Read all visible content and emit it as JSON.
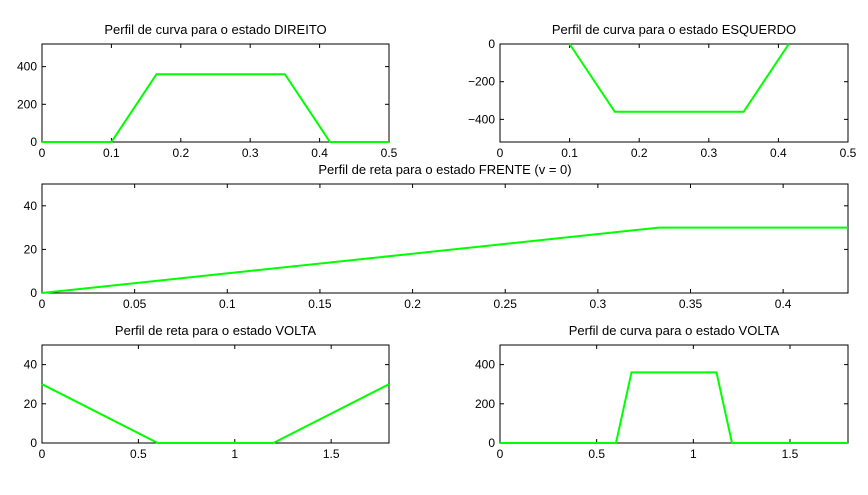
{
  "chart_data": [
    {
      "type": "line",
      "title": "Perfil de curva para o estado DIREITO",
      "xlabel": "",
      "ylabel": "",
      "xlim": [
        0,
        0.5
      ],
      "ylim": [
        0,
        520
      ],
      "xticks": [
        0,
        0.1,
        0.2,
        0.3,
        0.4,
        0.5
      ],
      "xtick_labels": [
        "0",
        "0.1",
        "0.2",
        "0.3",
        "0.4",
        "0.5"
      ],
      "yticks": [
        0,
        200,
        400
      ],
      "ytick_labels": [
        "0",
        "200",
        "400"
      ],
      "grid": false,
      "color": "#00ff00",
      "series": [
        {
          "x": [
            0,
            0.1,
            0.165,
            0.35,
            0.415,
            0.5
          ],
          "y": [
            0,
            0,
            360,
            360,
            0,
            0
          ]
        }
      ]
    },
    {
      "type": "line",
      "title": "Perfil de curva para o estado ESQUERDO",
      "xlabel": "",
      "ylabel": "",
      "xlim": [
        0,
        0.5
      ],
      "ylim": [
        -520,
        0
      ],
      "xticks": [
        0,
        0.1,
        0.2,
        0.3,
        0.4,
        0.5
      ],
      "xtick_labels": [
        "0",
        "0.1",
        "0.2",
        "0.3",
        "0.4",
        "0.5"
      ],
      "yticks": [
        -400,
        -200,
        0
      ],
      "ytick_labels": [
        "−400",
        "−200",
        "0"
      ],
      "grid": false,
      "color": "#00ff00",
      "series": [
        {
          "x": [
            0.1,
            0.165,
            0.35,
            0.415
          ],
          "y": [
            0,
            -360,
            -360,
            0
          ]
        }
      ]
    },
    {
      "type": "line",
      "title": "Perfil de reta para o estado FRENTE (v = 0)",
      "xlabel": "",
      "ylabel": "",
      "xlim": [
        0,
        0.435
      ],
      "ylim": [
        0,
        50
      ],
      "xticks": [
        0,
        0.05,
        0.1,
        0.15,
        0.2,
        0.25,
        0.3,
        0.35,
        0.4
      ],
      "xtick_labels": [
        "0",
        "0.05",
        "0.1",
        "0.15",
        "0.2",
        "0.25",
        "0.3",
        "0.35",
        "0.4"
      ],
      "yticks": [
        0,
        20,
        40
      ],
      "ytick_labels": [
        "0",
        "20",
        "40"
      ],
      "grid": false,
      "color": "#00ff00",
      "series": [
        {
          "x": [
            0,
            0.333,
            0.435
          ],
          "y": [
            0,
            30,
            30
          ]
        }
      ]
    },
    {
      "type": "line",
      "title": "Perfil de reta para o estado VOLTA",
      "xlabel": "",
      "ylabel": "",
      "xlim": [
        0,
        1.8
      ],
      "ylim": [
        0,
        50
      ],
      "xticks": [
        0,
        0.5,
        1,
        1.5
      ],
      "xtick_labels": [
        "0",
        "0.5",
        "1",
        "1.5"
      ],
      "yticks": [
        0,
        20,
        40
      ],
      "ytick_labels": [
        "0",
        "20",
        "40"
      ],
      "grid": false,
      "color": "#00ff00",
      "series": [
        {
          "x": [
            0,
            0.6,
            1.2,
            1.8
          ],
          "y": [
            30,
            0,
            0,
            30
          ]
        }
      ]
    },
    {
      "type": "line",
      "title": "Perfil de curva para o estado VOLTA",
      "xlabel": "",
      "ylabel": "",
      "xlim": [
        0,
        1.8
      ],
      "ylim": [
        0,
        500
      ],
      "xticks": [
        0,
        0.5,
        1,
        1.5
      ],
      "xtick_labels": [
        "0",
        "0.5",
        "1",
        "1.5"
      ],
      "yticks": [
        0,
        200,
        400
      ],
      "ytick_labels": [
        "0",
        "200",
        "400"
      ],
      "grid": false,
      "color": "#00ff00",
      "series": [
        {
          "x": [
            0,
            0.6,
            0.68,
            1.12,
            1.2,
            1.8
          ],
          "y": [
            0,
            0,
            360,
            360,
            0,
            0
          ]
        }
      ]
    }
  ]
}
